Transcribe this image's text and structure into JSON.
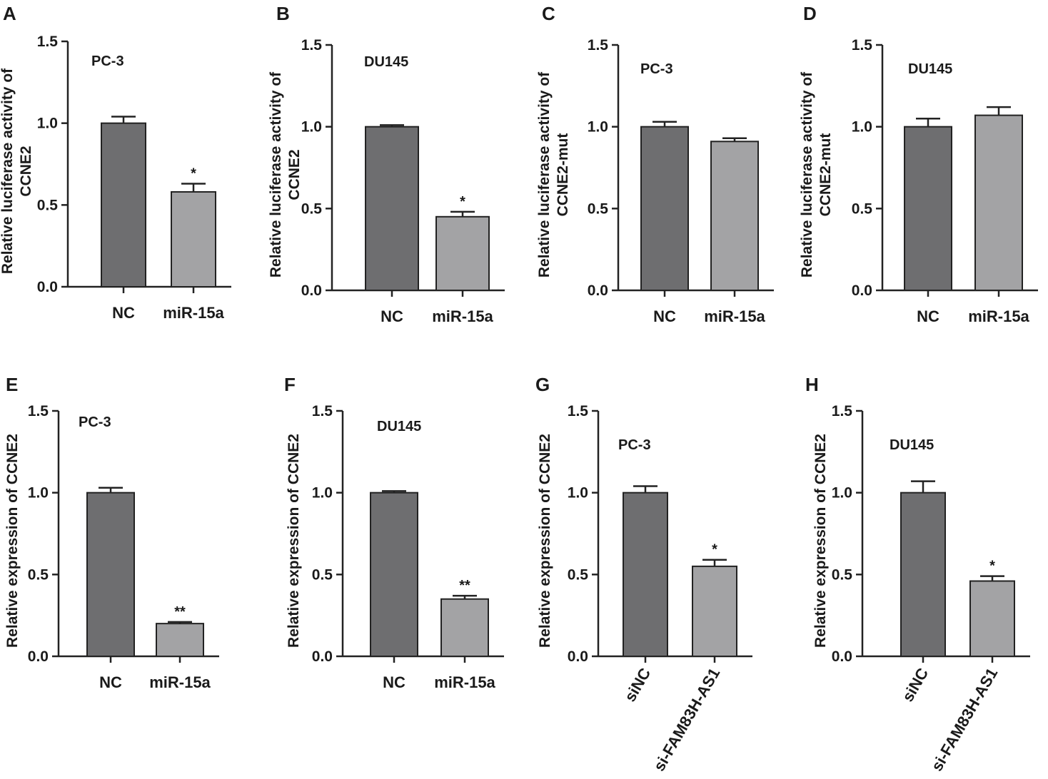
{
  "chart_data": [
    {
      "panel": "A",
      "type": "bar",
      "title": "PC-3",
      "ylabel": [
        "Relative luciferase activity of",
        "CCNE2"
      ],
      "categories": [
        "NC",
        "miR-15a"
      ],
      "values": [
        1.0,
        0.58
      ],
      "errors": [
        0.04,
        0.05
      ],
      "significance": [
        "",
        "*"
      ],
      "ylim": [
        0,
        1.5
      ],
      "yticks": [
        "0.0",
        "0.5",
        "1.0",
        "1.5"
      ],
      "colors": [
        "#6e6e70",
        "#a3a3a5"
      ]
    },
    {
      "panel": "B",
      "type": "bar",
      "title": "DU145",
      "ylabel": [
        "Relative luciferase activity of",
        "CCNE2"
      ],
      "categories": [
        "NC",
        "miR-15a"
      ],
      "values": [
        1.0,
        0.45
      ],
      "errors": [
        0.01,
        0.03
      ],
      "significance": [
        "",
        "*"
      ],
      "ylim": [
        0,
        1.5
      ],
      "yticks": [
        "0.0",
        "0.5",
        "1.0",
        "1.5"
      ],
      "colors": [
        "#6e6e70",
        "#a3a3a5"
      ]
    },
    {
      "panel": "C",
      "type": "bar",
      "title": "PC-3",
      "ylabel": [
        "Relative luciferase activity of",
        "CCNE2-mut"
      ],
      "categories": [
        "NC",
        "miR-15a"
      ],
      "values": [
        1.0,
        0.91
      ],
      "errors": [
        0.03,
        0.02
      ],
      "significance": [
        "",
        ""
      ],
      "ylim": [
        0,
        1.5
      ],
      "yticks": [
        "0.0",
        "0.5",
        "1.0",
        "1.5"
      ],
      "colors": [
        "#6e6e70",
        "#a3a3a5"
      ]
    },
    {
      "panel": "D",
      "type": "bar",
      "title": "DU145",
      "ylabel": [
        "Relative luciferase activity of",
        "CCNE2-mut"
      ],
      "categories": [
        "NC",
        "miR-15a"
      ],
      "values": [
        1.0,
        1.07
      ],
      "errors": [
        0.05,
        0.05
      ],
      "significance": [
        "",
        ""
      ],
      "ylim": [
        0,
        1.5
      ],
      "yticks": [
        "0.0",
        "0.5",
        "1.0",
        "1.5"
      ],
      "colors": [
        "#6e6e70",
        "#a3a3a5"
      ]
    },
    {
      "panel": "E",
      "type": "bar",
      "title": "PC-3",
      "ylabel": [
        "Relative expression of CCNE2"
      ],
      "categories": [
        "NC",
        "miR-15a"
      ],
      "values": [
        1.0,
        0.2
      ],
      "errors": [
        0.03,
        0.01
      ],
      "significance": [
        "",
        "**"
      ],
      "ylim": [
        0,
        1.5
      ],
      "yticks": [
        "0.0",
        "0.5",
        "1.0",
        "1.5"
      ],
      "colors": [
        "#6e6e70",
        "#a3a3a5"
      ]
    },
    {
      "panel": "F",
      "type": "bar",
      "title": "DU145",
      "ylabel": [
        "Relative expression of CCNE2"
      ],
      "categories": [
        "NC",
        "miR-15a"
      ],
      "values": [
        1.0,
        0.35
      ],
      "errors": [
        0.01,
        0.02
      ],
      "significance": [
        "",
        "**"
      ],
      "ylim": [
        0,
        1.5
      ],
      "yticks": [
        "0.0",
        "0.5",
        "1.0",
        "1.5"
      ],
      "colors": [
        "#6e6e70",
        "#a3a3a5"
      ]
    },
    {
      "panel": "G",
      "type": "bar",
      "title": "PC-3",
      "ylabel": [
        "Relative expression of CCNE2"
      ],
      "categories": [
        "siNC",
        "si-FAM83H-AS1"
      ],
      "values": [
        1.0,
        0.55
      ],
      "errors": [
        0.04,
        0.04
      ],
      "significance": [
        "",
        "*"
      ],
      "ylim": [
        0,
        1.5
      ],
      "yticks": [
        "0.0",
        "0.5",
        "1.0",
        "1.5"
      ],
      "colors": [
        "#6e6e70",
        "#a3a3a5"
      ]
    },
    {
      "panel": "H",
      "type": "bar",
      "title": "DU145",
      "ylabel": [
        "Relative expression of CCNE2"
      ],
      "categories": [
        "siNC",
        "si-FAM83H-AS1"
      ],
      "values": [
        1.0,
        0.46
      ],
      "errors": [
        0.07,
        0.03
      ],
      "significance": [
        "",
        "*"
      ],
      "ylim": [
        0,
        1.5
      ],
      "yticks": [
        "0.0",
        "0.5",
        "1.0",
        "1.5"
      ],
      "colors": [
        "#6e6e70",
        "#a3a3a5"
      ]
    }
  ]
}
